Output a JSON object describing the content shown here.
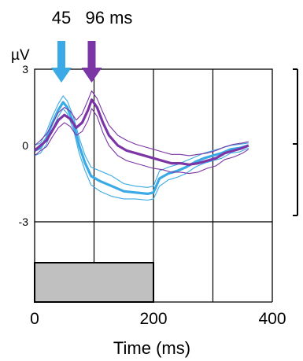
{
  "chart_data": {
    "type": "line",
    "title": "",
    "xlabel": "Time (ms)",
    "ylabel": "µV",
    "xlim": [
      0,
      400
    ],
    "ylim": [
      -3,
      3
    ],
    "xticks": [
      {
        "value": 0,
        "label": "0"
      },
      {
        "value": 200,
        "label": "200"
      },
      {
        "value": 400,
        "label": "400"
      }
    ],
    "yticks": [
      {
        "value": 3,
        "label": "3"
      },
      {
        "value": 0,
        "label": "0"
      },
      {
        "value": -3,
        "label": "-3"
      }
    ],
    "vertical_gridlines": [
      100,
      200,
      300
    ],
    "stimulus_bar": {
      "start": 0,
      "end": 200,
      "color": "#c0c0c0"
    },
    "annotations": [
      {
        "label": "45",
        "x": 45,
        "color": "#3aa9e6"
      },
      {
        "label": "96 ms",
        "x": 96,
        "color": "#7b35a5"
      }
    ],
    "series": [
      {
        "color": "#3aa9e6",
        "values": [
          [
            0,
            -0.2
          ],
          [
            10,
            -0.1
          ],
          [
            20,
            0.3
          ],
          [
            30,
            0.9
          ],
          [
            40,
            1.4
          ],
          [
            48,
            1.7
          ],
          [
            55,
            1.5
          ],
          [
            65,
            0.9
          ],
          [
            75,
            0.0
          ],
          [
            85,
            -0.7
          ],
          [
            95,
            -1.2
          ],
          [
            110,
            -1.4
          ],
          [
            130,
            -1.6
          ],
          [
            150,
            -1.8
          ],
          [
            170,
            -1.85
          ],
          [
            190,
            -1.9
          ],
          [
            200,
            -1.85
          ],
          [
            210,
            -1.3
          ],
          [
            225,
            -1.1
          ],
          [
            240,
            -1.0
          ],
          [
            255,
            -0.85
          ],
          [
            270,
            -0.65
          ],
          [
            285,
            -0.5
          ],
          [
            300,
            -0.4
          ],
          [
            315,
            -0.3
          ],
          [
            330,
            -0.15
          ],
          [
            345,
            -0.1
          ],
          [
            360,
            0.0
          ]
        ],
        "upper": [
          [
            0,
            0.0
          ],
          [
            10,
            0.1
          ],
          [
            20,
            0.55
          ],
          [
            30,
            1.15
          ],
          [
            40,
            1.65
          ],
          [
            48,
            1.95
          ],
          [
            55,
            1.75
          ],
          [
            65,
            1.15
          ],
          [
            75,
            0.3
          ],
          [
            85,
            -0.4
          ],
          [
            95,
            -0.85
          ],
          [
            110,
            -1.0
          ],
          [
            130,
            -1.2
          ],
          [
            150,
            -1.5
          ],
          [
            170,
            -1.6
          ],
          [
            190,
            -1.65
          ],
          [
            200,
            -1.6
          ],
          [
            210,
            -1.0
          ],
          [
            225,
            -0.85
          ],
          [
            240,
            -0.75
          ],
          [
            255,
            -0.6
          ],
          [
            270,
            -0.45
          ],
          [
            285,
            -0.3
          ],
          [
            300,
            -0.2
          ],
          [
            315,
            -0.1
          ],
          [
            330,
            0.0
          ],
          [
            345,
            0.05
          ],
          [
            360,
            0.1
          ]
        ],
        "lower": [
          [
            0,
            -0.4
          ],
          [
            10,
            -0.3
          ],
          [
            20,
            0.05
          ],
          [
            30,
            0.65
          ],
          [
            40,
            1.15
          ],
          [
            48,
            1.45
          ],
          [
            55,
            1.25
          ],
          [
            65,
            0.65
          ],
          [
            75,
            -0.3
          ],
          [
            85,
            -1.0
          ],
          [
            95,
            -1.55
          ],
          [
            110,
            -1.8
          ],
          [
            130,
            -2.0
          ],
          [
            150,
            -2.1
          ],
          [
            170,
            -2.1
          ],
          [
            190,
            -2.15
          ],
          [
            200,
            -2.1
          ],
          [
            210,
            -1.6
          ],
          [
            225,
            -1.35
          ],
          [
            240,
            -1.25
          ],
          [
            255,
            -1.1
          ],
          [
            270,
            -0.85
          ],
          [
            285,
            -0.7
          ],
          [
            300,
            -0.6
          ],
          [
            315,
            -0.5
          ],
          [
            330,
            -0.3
          ],
          [
            345,
            -0.25
          ],
          [
            360,
            -0.1
          ]
        ]
      },
      {
        "color": "#7b35a5",
        "values": [
          [
            0,
            -0.2
          ],
          [
            10,
            0.0
          ],
          [
            20,
            0.2
          ],
          [
            30,
            0.6
          ],
          [
            40,
            1.0
          ],
          [
            50,
            1.2
          ],
          [
            60,
            1.05
          ],
          [
            70,
            0.7
          ],
          [
            80,
            0.9
          ],
          [
            90,
            1.4
          ],
          [
            96,
            1.8
          ],
          [
            105,
            1.5
          ],
          [
            115,
            0.9
          ],
          [
            125,
            0.4
          ],
          [
            140,
            0.0
          ],
          [
            155,
            -0.2
          ],
          [
            170,
            -0.3
          ],
          [
            185,
            -0.4
          ],
          [
            200,
            -0.5
          ],
          [
            215,
            -0.6
          ],
          [
            230,
            -0.7
          ],
          [
            245,
            -0.7
          ],
          [
            260,
            -0.75
          ],
          [
            275,
            -0.7
          ],
          [
            290,
            -0.6
          ],
          [
            305,
            -0.5
          ],
          [
            320,
            -0.3
          ],
          [
            335,
            -0.2
          ],
          [
            350,
            -0.1
          ],
          [
            360,
            0.0
          ]
        ],
        "upper": [
          [
            0,
            0.0
          ],
          [
            10,
            0.2
          ],
          [
            20,
            0.45
          ],
          [
            30,
            0.85
          ],
          [
            40,
            1.3
          ],
          [
            50,
            1.5
          ],
          [
            60,
            1.35
          ],
          [
            70,
            1.0
          ],
          [
            80,
            1.25
          ],
          [
            90,
            1.8
          ],
          [
            96,
            2.15
          ],
          [
            105,
            1.85
          ],
          [
            115,
            1.3
          ],
          [
            125,
            0.8
          ],
          [
            140,
            0.4
          ],
          [
            155,
            0.2
          ],
          [
            170,
            0.05
          ],
          [
            185,
            -0.05
          ],
          [
            200,
            -0.15
          ],
          [
            215,
            -0.25
          ],
          [
            230,
            -0.35
          ],
          [
            245,
            -0.35
          ],
          [
            260,
            -0.4
          ],
          [
            275,
            -0.35
          ],
          [
            290,
            -0.3
          ],
          [
            305,
            -0.2
          ],
          [
            320,
            -0.05
          ],
          [
            335,
            0.05
          ],
          [
            350,
            0.1
          ],
          [
            360,
            0.15
          ]
        ],
        "lower": [
          [
            0,
            -0.4
          ],
          [
            10,
            -0.2
          ],
          [
            20,
            -0.05
          ],
          [
            30,
            0.35
          ],
          [
            40,
            0.7
          ],
          [
            50,
            0.9
          ],
          [
            60,
            0.75
          ],
          [
            70,
            0.4
          ],
          [
            80,
            0.55
          ],
          [
            90,
            1.0
          ],
          [
            96,
            1.45
          ],
          [
            105,
            1.15
          ],
          [
            115,
            0.5
          ],
          [
            125,
            0.0
          ],
          [
            140,
            -0.4
          ],
          [
            155,
            -0.6
          ],
          [
            170,
            -0.7
          ],
          [
            185,
            -0.8
          ],
          [
            200,
            -0.9
          ],
          [
            215,
            -0.95
          ],
          [
            230,
            -1.05
          ],
          [
            245,
            -1.05
          ],
          [
            260,
            -1.1
          ],
          [
            275,
            -1.05
          ],
          [
            290,
            -0.9
          ],
          [
            305,
            -0.8
          ],
          [
            320,
            -0.55
          ],
          [
            335,
            -0.45
          ],
          [
            350,
            -0.3
          ],
          [
            360,
            -0.15
          ]
        ]
      }
    ]
  }
}
